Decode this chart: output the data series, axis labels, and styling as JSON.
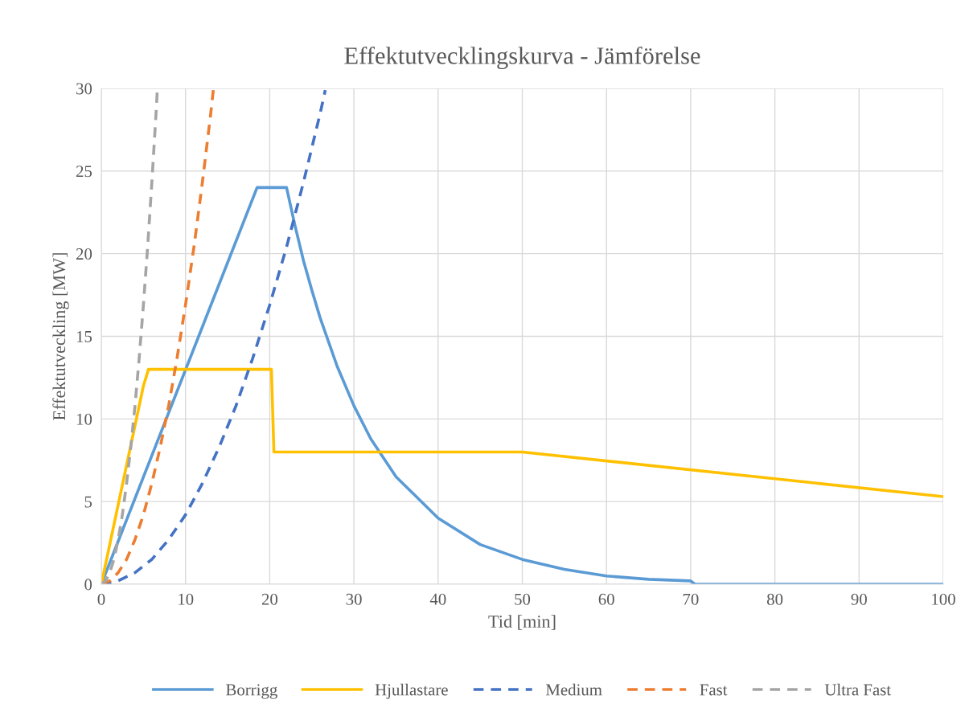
{
  "chart_data": {
    "type": "line",
    "title": "Effektutvecklingskurva - Jämförelse",
    "xlabel": "Tid [min]",
    "ylabel": "Effektutveckling [MW]",
    "xlim": [
      0,
      100
    ],
    "xticks": [
      0,
      10,
      20,
      30,
      40,
      50,
      60,
      70,
      80,
      90,
      100
    ],
    "ylim": [
      0,
      30
    ],
    "yticks": [
      0,
      5,
      10,
      15,
      20,
      25,
      30
    ],
    "grid": true,
    "legend": "bottom",
    "marker": "none",
    "series": [
      {
        "name": "Borrigg",
        "color": "#5b9bd5",
        "line_style": "solid",
        "x": [
          0,
          18.5,
          19,
          21.5,
          22,
          23,
          24,
          25,
          26,
          28,
          30,
          32,
          35,
          40,
          45,
          50,
          55,
          60,
          65,
          70,
          70.5,
          100
        ],
        "values": [
          0,
          24,
          24,
          24,
          24,
          21.7,
          19.6,
          17.8,
          16.1,
          13.2,
          10.8,
          8.8,
          6.5,
          4,
          2.4,
          1.5,
          0.9,
          0.5,
          0.3,
          0.2,
          0,
          0
        ]
      },
      {
        "name": "Hjullastare",
        "color": "#ffc000",
        "line_style": "solid",
        "x": [
          0,
          5,
          5.6,
          20,
          20.2,
          20.5,
          50,
          100
        ],
        "values": [
          0,
          12,
          13,
          13,
          13,
          8,
          8,
          5.3
        ]
      },
      {
        "name": "Medium",
        "color": "#4472c4",
        "line_style": "dashed",
        "x": [
          0,
          2,
          4,
          6,
          8,
          10,
          12,
          14,
          16,
          18,
          20,
          22,
          24,
          26,
          26.6
        ],
        "values": [
          0,
          0.2,
          0.7,
          1.5,
          2.7,
          4.2,
          6.1,
          8.3,
          10.8,
          13.7,
          16.9,
          20.4,
          24.3,
          28.5,
          29.9
        ]
      },
      {
        "name": "Fast",
        "color": "#ed7d31",
        "line_style": "dashed",
        "x": [
          0,
          1,
          2,
          3,
          4,
          5,
          6,
          7,
          8,
          9,
          10,
          11,
          12,
          13,
          13.3
        ],
        "values": [
          0,
          0.2,
          0.7,
          1.5,
          2.7,
          4.2,
          6.1,
          8.3,
          10.8,
          13.7,
          16.9,
          20.4,
          24.3,
          28.5,
          29.9
        ]
      },
      {
        "name": "Ultra Fast",
        "color": "#a5a5a5",
        "line_style": "dashed",
        "x": [
          0,
          0.5,
          1,
          1.5,
          2,
          2.5,
          3,
          3.5,
          4,
          4.5,
          5,
          5.5,
          6,
          6.5,
          6.66
        ],
        "values": [
          0,
          0.2,
          0.7,
          1.5,
          2.7,
          4.2,
          6.1,
          8.3,
          10.8,
          13.7,
          16.9,
          20.4,
          24.3,
          28.5,
          30
        ]
      }
    ]
  }
}
